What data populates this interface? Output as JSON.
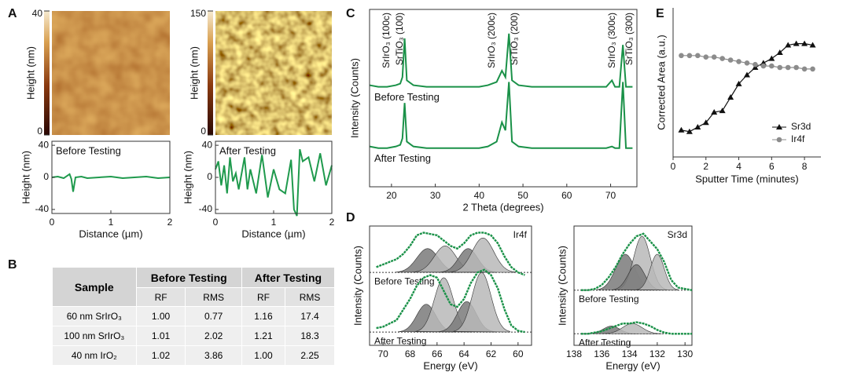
{
  "panel_labels": [
    "A",
    "B",
    "C",
    "D",
    "E"
  ],
  "table": {
    "header": [
      "Sample",
      "Before Testing",
      "After Testing"
    ],
    "subheader": [
      "RF",
      "RMS",
      "RF",
      "RMS"
    ],
    "rows": [
      [
        "60 nm SrIrO₃",
        "1.00",
        "0.77",
        "1.16",
        "17.4"
      ],
      [
        "100 nm SrIrO₃",
        "1.01",
        "2.02",
        "1.21",
        "18.3"
      ],
      [
        "40 nm IrO₂",
        "1.02",
        "3.86",
        "1.00",
        "2.25"
      ]
    ]
  },
  "chart_data": [
    {
      "type": "image",
      "ylabel": "Height (nm)",
      "clim": [
        0,
        40
      ],
      "cticks": [
        0,
        40
      ]
    },
    {
      "type": "image",
      "ylabel": "Height (nm)",
      "clim": [
        0,
        150
      ],
      "cticks": [
        0,
        150
      ]
    },
    {
      "type": "line",
      "annotation": "Before Testing",
      "xlabel": "Distance (µm)",
      "ylabel": "Height (nm)",
      "x": [
        0,
        0.1,
        0.2,
        0.3,
        0.33,
        0.36,
        0.4,
        0.5,
        0.6,
        0.8,
        1.0,
        1.2,
        1.4,
        1.6,
        1.8,
        2.0
      ],
      "series": [
        {
          "color": "#1f9a4d",
          "values": [
            0,
            1,
            -1,
            4,
            -2,
            -18,
            0,
            1,
            -1,
            0,
            1,
            -1,
            0,
            1,
            -1,
            0
          ]
        }
      ],
      "xlim": [
        0,
        2
      ],
      "xticks": [
        0,
        1,
        2
      ],
      "ylim": [
        -45,
        45
      ],
      "yticks": [
        40,
        0,
        -40
      ]
    },
    {
      "type": "line",
      "annotation": "After Testing",
      "xlabel": "Distance (µm)",
      "ylabel": "Height (nm)",
      "x": [
        0,
        0.05,
        0.1,
        0.15,
        0.2,
        0.25,
        0.3,
        0.35,
        0.4,
        0.5,
        0.55,
        0.6,
        0.7,
        0.8,
        0.9,
        1.0,
        1.1,
        1.2,
        1.3,
        1.35,
        1.4,
        1.45,
        1.5,
        1.6,
        1.7,
        1.8,
        1.9,
        2.0
      ],
      "series": [
        {
          "color": "#1f9a4d",
          "values": [
            10,
            20,
            -10,
            15,
            -20,
            25,
            -5,
            5,
            -15,
            25,
            -15,
            10,
            -20,
            28,
            -25,
            10,
            -15,
            -20,
            22,
            -40,
            -48,
            35,
            20,
            25,
            -5,
            30,
            -10,
            15
          ]
        }
      ],
      "xlim": [
        0,
        2
      ],
      "xticks": [
        0,
        1,
        2
      ],
      "ylim": [
        -45,
        45
      ],
      "yticks": [
        40,
        0,
        -40
      ]
    },
    {
      "type": "line",
      "xlabel": "2 Theta (degrees)",
      "ylabel": "Intensity (Counts)",
      "annotations": [
        "SrIrO₃ (100c)",
        "SrTiO₃ (100)",
        "SrIrO₃ (200c)",
        "SrTiO₃ (200)",
        "SrIrO₃ (300c)",
        "SrTiO₃ (300)"
      ],
      "x": [
        15,
        17,
        19,
        21,
        22,
        22.5,
        23,
        23.5,
        25,
        28,
        31,
        34,
        37,
        40,
        42,
        44,
        45.2,
        46,
        46.8,
        47.5,
        49,
        52,
        55,
        58,
        61,
        64,
        67,
        69,
        70.3,
        71,
        72,
        72.8,
        73.5,
        75
      ],
      "series": [
        {
          "name": "Before Testing",
          "color": "#1a9148",
          "values": [
            63,
            62,
            62,
            63,
            64,
            68,
            92,
            66,
            63,
            62,
            62,
            62,
            62,
            62,
            63,
            65,
            72,
            68,
            95,
            66,
            63,
            62,
            62,
            62,
            62,
            62,
            62,
            62,
            66,
            62,
            62,
            88,
            62,
            62
          ]
        },
        {
          "name": "After Testing",
          "color": "#1a9148",
          "values": [
            25,
            24,
            24,
            25,
            26,
            30,
            52,
            28,
            25,
            24,
            24,
            24,
            24,
            24,
            25,
            28,
            40,
            35,
            65,
            28,
            25,
            24,
            24,
            24,
            24,
            24,
            24,
            24,
            25,
            24,
            24,
            65,
            24,
            24
          ]
        }
      ],
      "xlim": [
        15,
        76
      ],
      "xticks": [
        20,
        30,
        40,
        50,
        60,
        70
      ],
      "ylim": [
        0,
        110
      ]
    },
    {
      "type": "spectrum",
      "annotation": "Ir4f",
      "xlabel": "Energy (eV)",
      "ylabel": "Intensity (Counts)",
      "colors": [
        "#7a7a7a",
        "#b8b8b8"
      ],
      "x": [
        70.5,
        70,
        69,
        68.5,
        68,
        67.5,
        67,
        66.5,
        66,
        65.5,
        65,
        64.5,
        64,
        63.5,
        63,
        62.5,
        62,
        61.5,
        61,
        60.5,
        60,
        59.5
      ],
      "series": [
        {
          "name": "Before Testing",
          "color": "#1a9148",
          "baseline": 60,
          "values": [
            64,
            66,
            70,
            74,
            80,
            88,
            90,
            89,
            88,
            84,
            80,
            78,
            82,
            88,
            90,
            90,
            88,
            82,
            72,
            64,
            60,
            58
          ],
          "peaks": [
            {
              "center": 66.7,
              "height": 78,
              "width": 0.8
            },
            {
              "center": 65.4,
              "height": 80,
              "width": 0.8
            },
            {
              "center": 63.7,
              "height": 78,
              "width": 0.7
            },
            {
              "center": 62.6,
              "height": 86,
              "width": 0.8
            }
          ]
        },
        {
          "name": "After Testing",
          "color": "#1a9148",
          "baseline": 15,
          "values": [
            18,
            19,
            24,
            32,
            40,
            50,
            56,
            58,
            56,
            46,
            36,
            34,
            40,
            52,
            60,
            62,
            58,
            48,
            32,
            20,
            16,
            15
          ],
          "peaks": [
            {
              "center": 66.8,
              "height": 36,
              "width": 0.7
            },
            {
              "center": 65.5,
              "height": 56,
              "width": 0.7
            },
            {
              "center": 63.8,
              "height": 38,
              "width": 0.7
            },
            {
              "center": 62.7,
              "height": 60,
              "width": 0.7
            }
          ]
        }
      ],
      "xlim": [
        71,
        59
      ],
      "xticks": [
        70,
        68,
        66,
        64,
        62,
        60
      ],
      "ylim": [
        5,
        95
      ]
    },
    {
      "type": "spectrum",
      "annotation": "Sr3d",
      "xlabel": "Energy (eV)",
      "ylabel": "Intensity (Counts)",
      "colors": [
        "#7a7a7a",
        "#b8b8b8"
      ],
      "x": [
        137.5,
        137,
        136.5,
        136,
        135.5,
        135,
        134.5,
        134,
        133.5,
        133,
        132.5,
        132,
        131.5,
        131,
        130.5,
        130,
        129.5
      ],
      "series": [
        {
          "name": "Before Testing",
          "color": "#1a9148",
          "baseline": 48,
          "values": [
            48,
            48,
            49,
            52,
            58,
            66,
            76,
            84,
            90,
            92,
            86,
            80,
            70,
            56,
            50,
            49,
            48
          ],
          "peaks": [
            {
              "center": 134.3,
              "height": 76,
              "width": 0.7
            },
            {
              "center": 133.1,
              "height": 90,
              "width": 0.6
            },
            {
              "center": 133.5,
              "height": 68,
              "width": 0.6
            },
            {
              "center": 132.0,
              "height": 76,
              "width": 0.5
            }
          ]
        },
        {
          "name": "After Testing",
          "color": "#1a9148",
          "baseline": 14,
          "values": [
            14,
            14,
            15,
            16,
            18,
            20,
            22,
            22,
            23,
            22,
            20,
            17,
            15,
            14,
            14,
            14,
            14
          ],
          "peaks": [
            {
              "center": 135.3,
              "height": 20,
              "width": 0.6
            },
            {
              "center": 133.8,
              "height": 22,
              "width": 0.7
            }
          ]
        }
      ],
      "xlim": [
        138,
        129.5
      ],
      "xticks": [
        138,
        136,
        134,
        132,
        130
      ],
      "ylim": [
        5,
        98
      ]
    },
    {
      "type": "line",
      "xlabel": "Sputter Time (minutes)",
      "ylabel": "Corrected Area (a.u.)",
      "legend": "lower right",
      "x": [
        0.5,
        1,
        1.5,
        2,
        2.5,
        3,
        3.5,
        4,
        4.5,
        5,
        5.5,
        6,
        6.5,
        7,
        7.5,
        8,
        8.5
      ],
      "series": [
        {
          "name": "Sr3d",
          "color": "#111111",
          "marker": "triangle",
          "values": [
            18,
            17,
            20,
            23,
            30,
            31,
            40,
            49,
            55,
            60,
            63,
            66,
            70,
            75,
            76,
            76,
            75
          ]
        },
        {
          "name": "Ir4f",
          "color": "#8c8c8c",
          "marker": "circle",
          "values": [
            68,
            68,
            68,
            67,
            67,
            66,
            65,
            64,
            63,
            62,
            61,
            61,
            60,
            60,
            60,
            59,
            59
          ]
        }
      ],
      "xlim": [
        0,
        9
      ],
      "xticks": [
        0,
        2,
        4,
        6,
        8
      ],
      "ylim": [
        0,
        100
      ]
    }
  ]
}
